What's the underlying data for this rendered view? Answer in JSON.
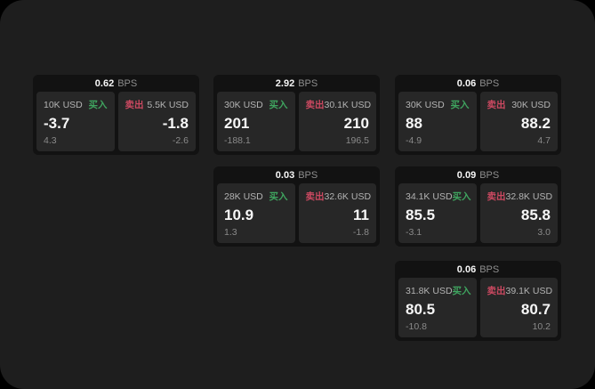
{
  "labels": {
    "bps": "BPS",
    "buy": "买入",
    "sell": "卖出"
  },
  "colors": {
    "background": "#000000",
    "panel": "#1e1e1e",
    "card": "#121212",
    "subpanel": "#272727",
    "buy_green": "#3fa45f",
    "sell_red": "#cc4961",
    "primary_text": "#f7f7f7",
    "secondary_text": "#b3b3b3",
    "muted_text": "#8a8a8a"
  },
  "cards": [
    {
      "bps": "0.62",
      "buy": {
        "amount": "10K USD",
        "price": "-3.7",
        "delta": "4.3"
      },
      "sell": {
        "amount": "5.5K USD",
        "price": "-1.8",
        "delta": "-2.6"
      }
    },
    {
      "bps": "2.92",
      "buy": {
        "amount": "30K USD",
        "price": "201",
        "delta": "-188.1"
      },
      "sell": {
        "amount": "30.1K USD",
        "price": "210",
        "delta": "196.5"
      }
    },
    {
      "bps": "0.06",
      "buy": {
        "amount": "30K USD",
        "price": "88",
        "delta": "-4.9"
      },
      "sell": {
        "amount": "30K USD",
        "price": "88.2",
        "delta": "4.7"
      }
    },
    {
      "bps": "0.03",
      "buy": {
        "amount": "28K USD",
        "price": "10.9",
        "delta": "1.3"
      },
      "sell": {
        "amount": "32.6K USD",
        "price": "11",
        "delta": "-1.8"
      }
    },
    {
      "bps": "0.09",
      "buy": {
        "amount": "34.1K USD",
        "price": "85.5",
        "delta": "-3.1"
      },
      "sell": {
        "amount": "32.8K USD",
        "price": "85.8",
        "delta": "3.0"
      }
    },
    {
      "bps": "0.06",
      "buy": {
        "amount": "31.8K USD",
        "price": "80.5",
        "delta": "-10.8"
      },
      "sell": {
        "amount": "39.1K USD",
        "price": "80.7",
        "delta": "10.2"
      }
    }
  ]
}
